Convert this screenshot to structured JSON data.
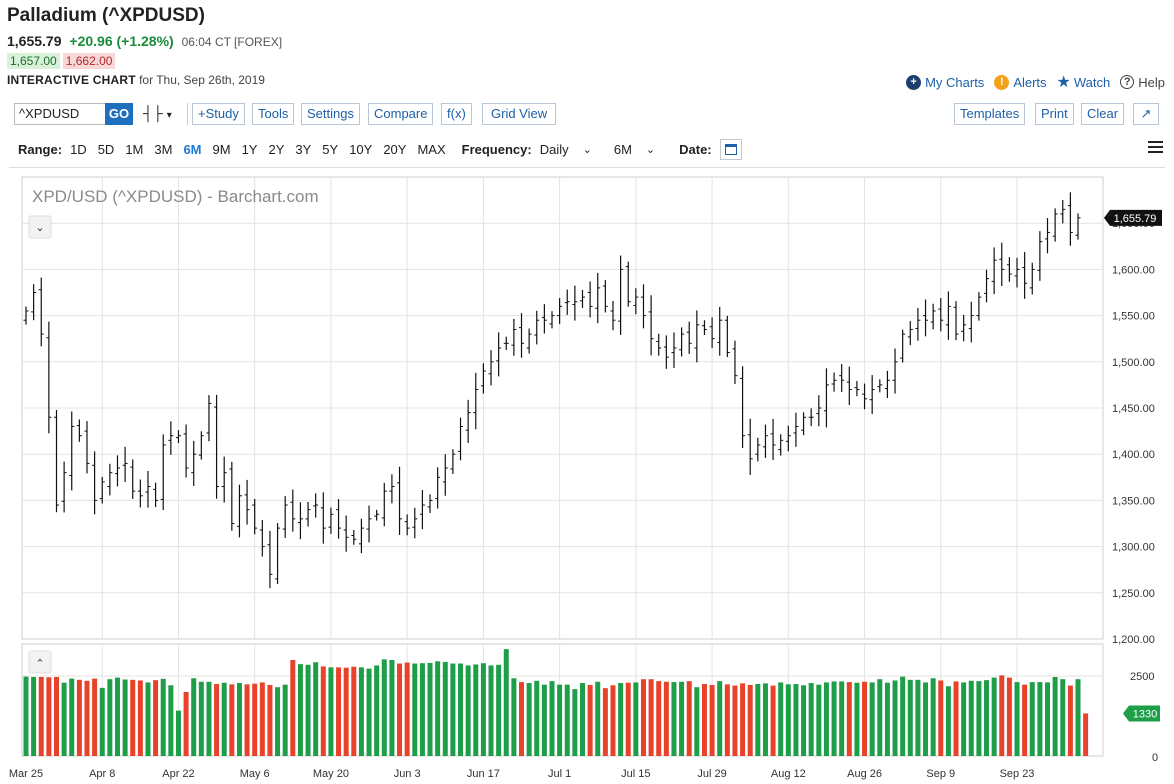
{
  "header": {
    "title": "Palladium (^XPDUSD)",
    "last": "1,655.79",
    "change": "+20.96 (+1.28%)",
    "time": "06:04 CT [FOREX]",
    "bid": "1,657.00",
    "ask": "1,662.00",
    "interactive_label": "INTERACTIVE CHART",
    "interactive_for": " for Thu, Sep 26th, 2019"
  },
  "links": {
    "my_charts": "My Charts",
    "alerts": "Alerts",
    "watch": "Watch",
    "help": "Help"
  },
  "toolbar": {
    "symbol": "^XPDUSD",
    "go": "GO",
    "study": "+Study",
    "tools": "Tools",
    "settings": "Settings",
    "compare": "Compare",
    "fx": "f(x)",
    "grid_view": "Grid View",
    "templates": "Templates",
    "print": "Print",
    "clear": "Clear"
  },
  "range": {
    "label": "Range:",
    "options": [
      "1D",
      "5D",
      "1M",
      "3M",
      "6M",
      "9M",
      "1Y",
      "2Y",
      "3Y",
      "5Y",
      "10Y",
      "20Y",
      "MAX"
    ],
    "active": "6M",
    "frequency_label": "Frequency:",
    "frequency": "Daily",
    "period": "6M",
    "date_label": "Date:"
  },
  "colors": {
    "up": "#1e9e48",
    "down": "#e8432a",
    "accent": "#1d5fa8"
  },
  "chart_data": {
    "type": "ohlc",
    "title": "XPD/USD (^XPDUSD) - Barchart.com",
    "last_price_label": "1,655.79",
    "ylim": [
      1200,
      1700
    ],
    "y_ticks": [
      "1,200.00",
      "1,250.00",
      "1,300.00",
      "1,350.00",
      "1,400.00",
      "1,450.00",
      "1,500.00",
      "1,550.00",
      "1,600.00",
      "1,650.00"
    ],
    "x_ticks": [
      "Mar 25",
      "Apr 8",
      "Apr 22",
      "May 6",
      "May 20",
      "Jun 3",
      "Jun 17",
      "Jul 1",
      "Jul 15",
      "Jul 29",
      "Aug 12",
      "Aug 26",
      "Sep 9",
      "Sep 23"
    ],
    "closes": [
      1555,
      1575,
      1530,
      1440,
      1345,
      1380,
      1430,
      1420,
      1390,
      1350,
      1370,
      1380,
      1385,
      1390,
      1360,
      1355,
      1365,
      1350,
      1410,
      1420,
      1420,
      1385,
      1400,
      1420,
      1455,
      1365,
      1380,
      1325,
      1355,
      1340,
      1320,
      1300,
      1270,
      1320,
      1345,
      1330,
      1330,
      1340,
      1345,
      1320,
      1335,
      1320,
      1310,
      1308,
      1320,
      1330,
      1335,
      1360,
      1365,
      1330,
      1320,
      1330,
      1345,
      1350,
      1375,
      1385,
      1400,
      1430,
      1445,
      1470,
      1490,
      1500,
      1515,
      1520,
      1535,
      1520,
      1530,
      1545,
      1545,
      1550,
      1560,
      1565,
      1565,
      1570,
      1560,
      1580,
      1560,
      1545,
      1600,
      1565,
      1570,
      1550,
      1525,
      1515,
      1505,
      1515,
      1530,
      1520,
      1540,
      1535,
      1525,
      1545,
      1510,
      1485,
      1420,
      1395,
      1410,
      1420,
      1410,
      1415,
      1420,
      1430,
      1440,
      1440,
      1450,
      1475,
      1480,
      1480,
      1470,
      1470,
      1460,
      1470,
      1475,
      1480,
      1500,
      1530,
      1535,
      1545,
      1545,
      1555,
      1545,
      1560,
      1530,
      1540,
      1550,
      1570,
      1590,
      1610,
      1600,
      1595,
      1600,
      1585,
      1600,
      1630,
      1640,
      1660,
      1665,
      1640,
      1655.79
    ],
    "volume_ticks": [
      "2500",
      "0"
    ],
    "volume_label": "1330",
    "volume": [
      2480,
      2470,
      2470,
      2460,
      2470,
      2290,
      2420,
      2380,
      2350,
      2420,
      2130,
      2400,
      2450,
      2390,
      2380,
      2360,
      2300,
      2370,
      2410,
      2210,
      1420,
      2000,
      2430,
      2320,
      2320,
      2250,
      2290,
      2240,
      2280,
      2240,
      2260,
      2300,
      2220,
      2150,
      2230,
      3000,
      2870,
      2850,
      2930,
      2800,
      2770,
      2770,
      2760,
      2790,
      2770,
      2730,
      2830,
      3020,
      3000,
      2890,
      2920,
      2890,
      2900,
      2910,
      2960,
      2940,
      2890,
      2890,
      2830,
      2860,
      2900,
      2830,
      2850,
      3340,
      2430,
      2310,
      2280,
      2350,
      2230,
      2340,
      2230,
      2230,
      2090,
      2280,
      2220,
      2320,
      2120,
      2210,
      2280,
      2290,
      2300,
      2400,
      2400,
      2340,
      2320,
      2310,
      2320,
      2340,
      2150,
      2250,
      2220,
      2340,
      2240,
      2200,
      2270,
      2220,
      2250,
      2270,
      2200,
      2300,
      2240,
      2250,
      2210,
      2280,
      2230,
      2300,
      2330,
      2330,
      2310,
      2290,
      2320,
      2300,
      2400,
      2290,
      2360,
      2480,
      2380,
      2380,
      2300,
      2430,
      2360,
      2180,
      2330,
      2300,
      2350,
      2340,
      2370,
      2450,
      2520,
      2450,
      2310,
      2230,
      2310,
      2310,
      2300,
      2470,
      2400,
      2200,
      2400,
      1330
    ],
    "volume_ylim": [
      0,
      3500
    ]
  }
}
